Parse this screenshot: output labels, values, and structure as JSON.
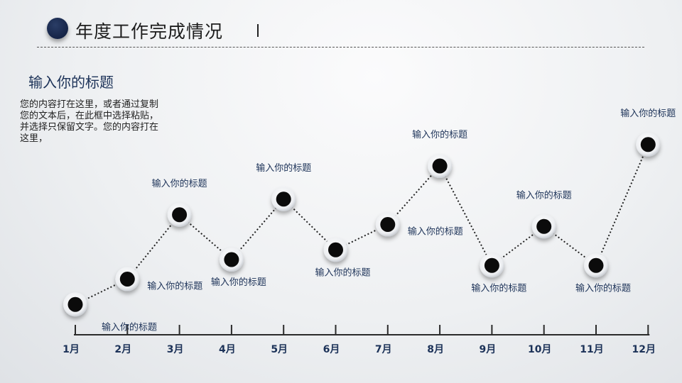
{
  "header": {
    "title": "年度工作完成情况"
  },
  "intro": {
    "title": "输入你的标题",
    "lines": [
      "您的内容打在这里，或者通过复制",
      "您的文本后，在此框中选择粘贴，",
      "并选择只保留文字。您的内容打在",
      "这里，"
    ]
  },
  "chart_data": {
    "type": "line",
    "categories": [
      "1月",
      "2月",
      "3月",
      "4月",
      "5月",
      "6月",
      "7月",
      "8月",
      "9月",
      "10月",
      "11月",
      "12月"
    ],
    "series": [
      {
        "values": [
          1.3,
          2.6,
          5.9,
          3.6,
          6.7,
          4.1,
          5.4,
          8.4,
          3.3,
          5.3,
          3.3,
          9.5
        ]
      }
    ],
    "point_labels": [
      "输入你的标题",
      "输入你的标题",
      "输入你的标题",
      "输入你的标题",
      "输入你的标题",
      "输入你的标题",
      "输入你的标题",
      "输入你的标题",
      "输入你的标题",
      "输入你的标题",
      "输入你的标题",
      "输入你的标题"
    ],
    "ylim": [
      0,
      10
    ],
    "grid": false
  },
  "colors": {
    "accent": "#1c3258",
    "point": "#0b0b0b",
    "line": "#222222"
  }
}
